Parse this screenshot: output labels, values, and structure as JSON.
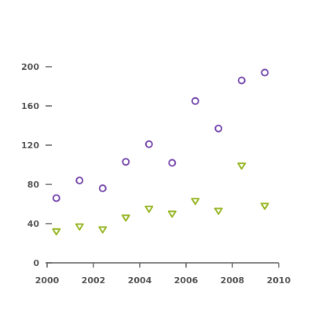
{
  "chart_data": {
    "type": "scatter",
    "title": "",
    "xlabel": "",
    "ylabel": "",
    "xlim": [
      2000,
      2010
    ],
    "ylim": [
      0,
      200
    ],
    "x_ticks": [
      2000,
      2002,
      2004,
      2006,
      2008,
      2010
    ],
    "y_ticks": [
      0,
      40,
      80,
      120,
      160,
      200
    ],
    "x_tick_labels": [
      "2000",
      "2002",
      "2004",
      "2006",
      "2008",
      "2010"
    ],
    "y_tick_labels": [
      "0",
      "40",
      "80",
      "120",
      "160",
      "200"
    ],
    "grid": false,
    "legend": "none",
    "series": [
      {
        "marker": "circle",
        "color": "#7b4fb0",
        "points": [
          {
            "x": 2000.4,
            "y": 66
          },
          {
            "x": 2001.4,
            "y": 84
          },
          {
            "x": 2002.4,
            "y": 76
          },
          {
            "x": 2003.4,
            "y": 103
          },
          {
            "x": 2004.4,
            "y": 121
          },
          {
            "x": 2005.4,
            "y": 102
          },
          {
            "x": 2006.4,
            "y": 165
          },
          {
            "x": 2007.4,
            "y": 137
          },
          {
            "x": 2008.4,
            "y": 186
          },
          {
            "x": 2009.4,
            "y": 194
          }
        ]
      },
      {
        "marker": "triangle-down",
        "color": "#99b82a",
        "points": [
          {
            "x": 2000.4,
            "y": 32
          },
          {
            "x": 2001.4,
            "y": 37
          },
          {
            "x": 2002.4,
            "y": 34
          },
          {
            "x": 2003.4,
            "y": 46
          },
          {
            "x": 2004.4,
            "y": 55
          },
          {
            "x": 2005.4,
            "y": 50
          },
          {
            "x": 2006.4,
            "y": 63
          },
          {
            "x": 2007.4,
            "y": 53
          },
          {
            "x": 2008.4,
            "y": 99
          },
          {
            "x": 2009.4,
            "y": 58
          }
        ]
      }
    ]
  }
}
